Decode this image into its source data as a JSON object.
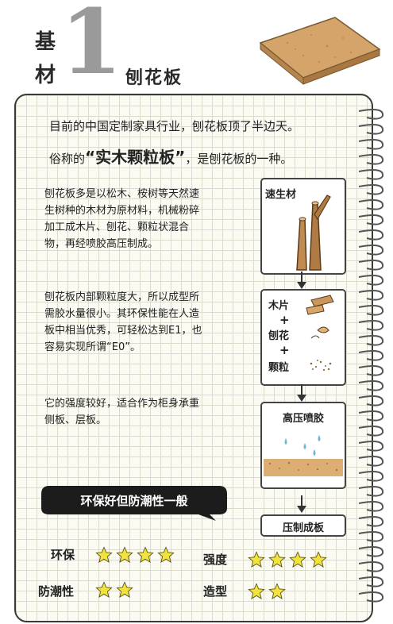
{
  "header": {
    "char1": "基",
    "char2": "材",
    "number": "1",
    "title": "刨花板"
  },
  "intro": {
    "line1": "目前的中国定制家具行业，刨花板顶了半边天。",
    "line2_pre": "俗称的",
    "line2_em": "“实木颗粒板”",
    "line2_post": "，是刨花板的一种。"
  },
  "paragraphs": [
    "刨花板多是以松木、桉树等天然速生树种的木材为原材料，机械粉碎加工成木片、刨花、颗粒状混合物，再经喷胶高压制成。",
    "刨花板内部颗粒度大，所以成型所需胶水量很小。其环保性能在人造板中相当优秀，可轻松达到E1，也容易实现所谓“E0”。",
    "它的强度较好，适合作为柜身承重侧板、层板。"
  ],
  "process": {
    "stage1": "速生材",
    "stage2": {
      "item1": "木片",
      "item2": "刨花",
      "item3": "颗粒",
      "plus": "+"
    },
    "stage3": "高压喷胶",
    "stage4": "压制成板"
  },
  "bubble": "环保好但防潮性一般",
  "ratings": [
    {
      "label": "环保",
      "stars": 4
    },
    {
      "label": "强度",
      "stars": 4
    },
    {
      "label": "防潮性",
      "stars": 2
    },
    {
      "label": "造型",
      "stars": 2
    }
  ],
  "colors": {
    "star": "#f2e33c",
    "bubble": "#1c1c1c",
    "grid_bg": "#fbfbf3",
    "board": "#cf9e63"
  }
}
